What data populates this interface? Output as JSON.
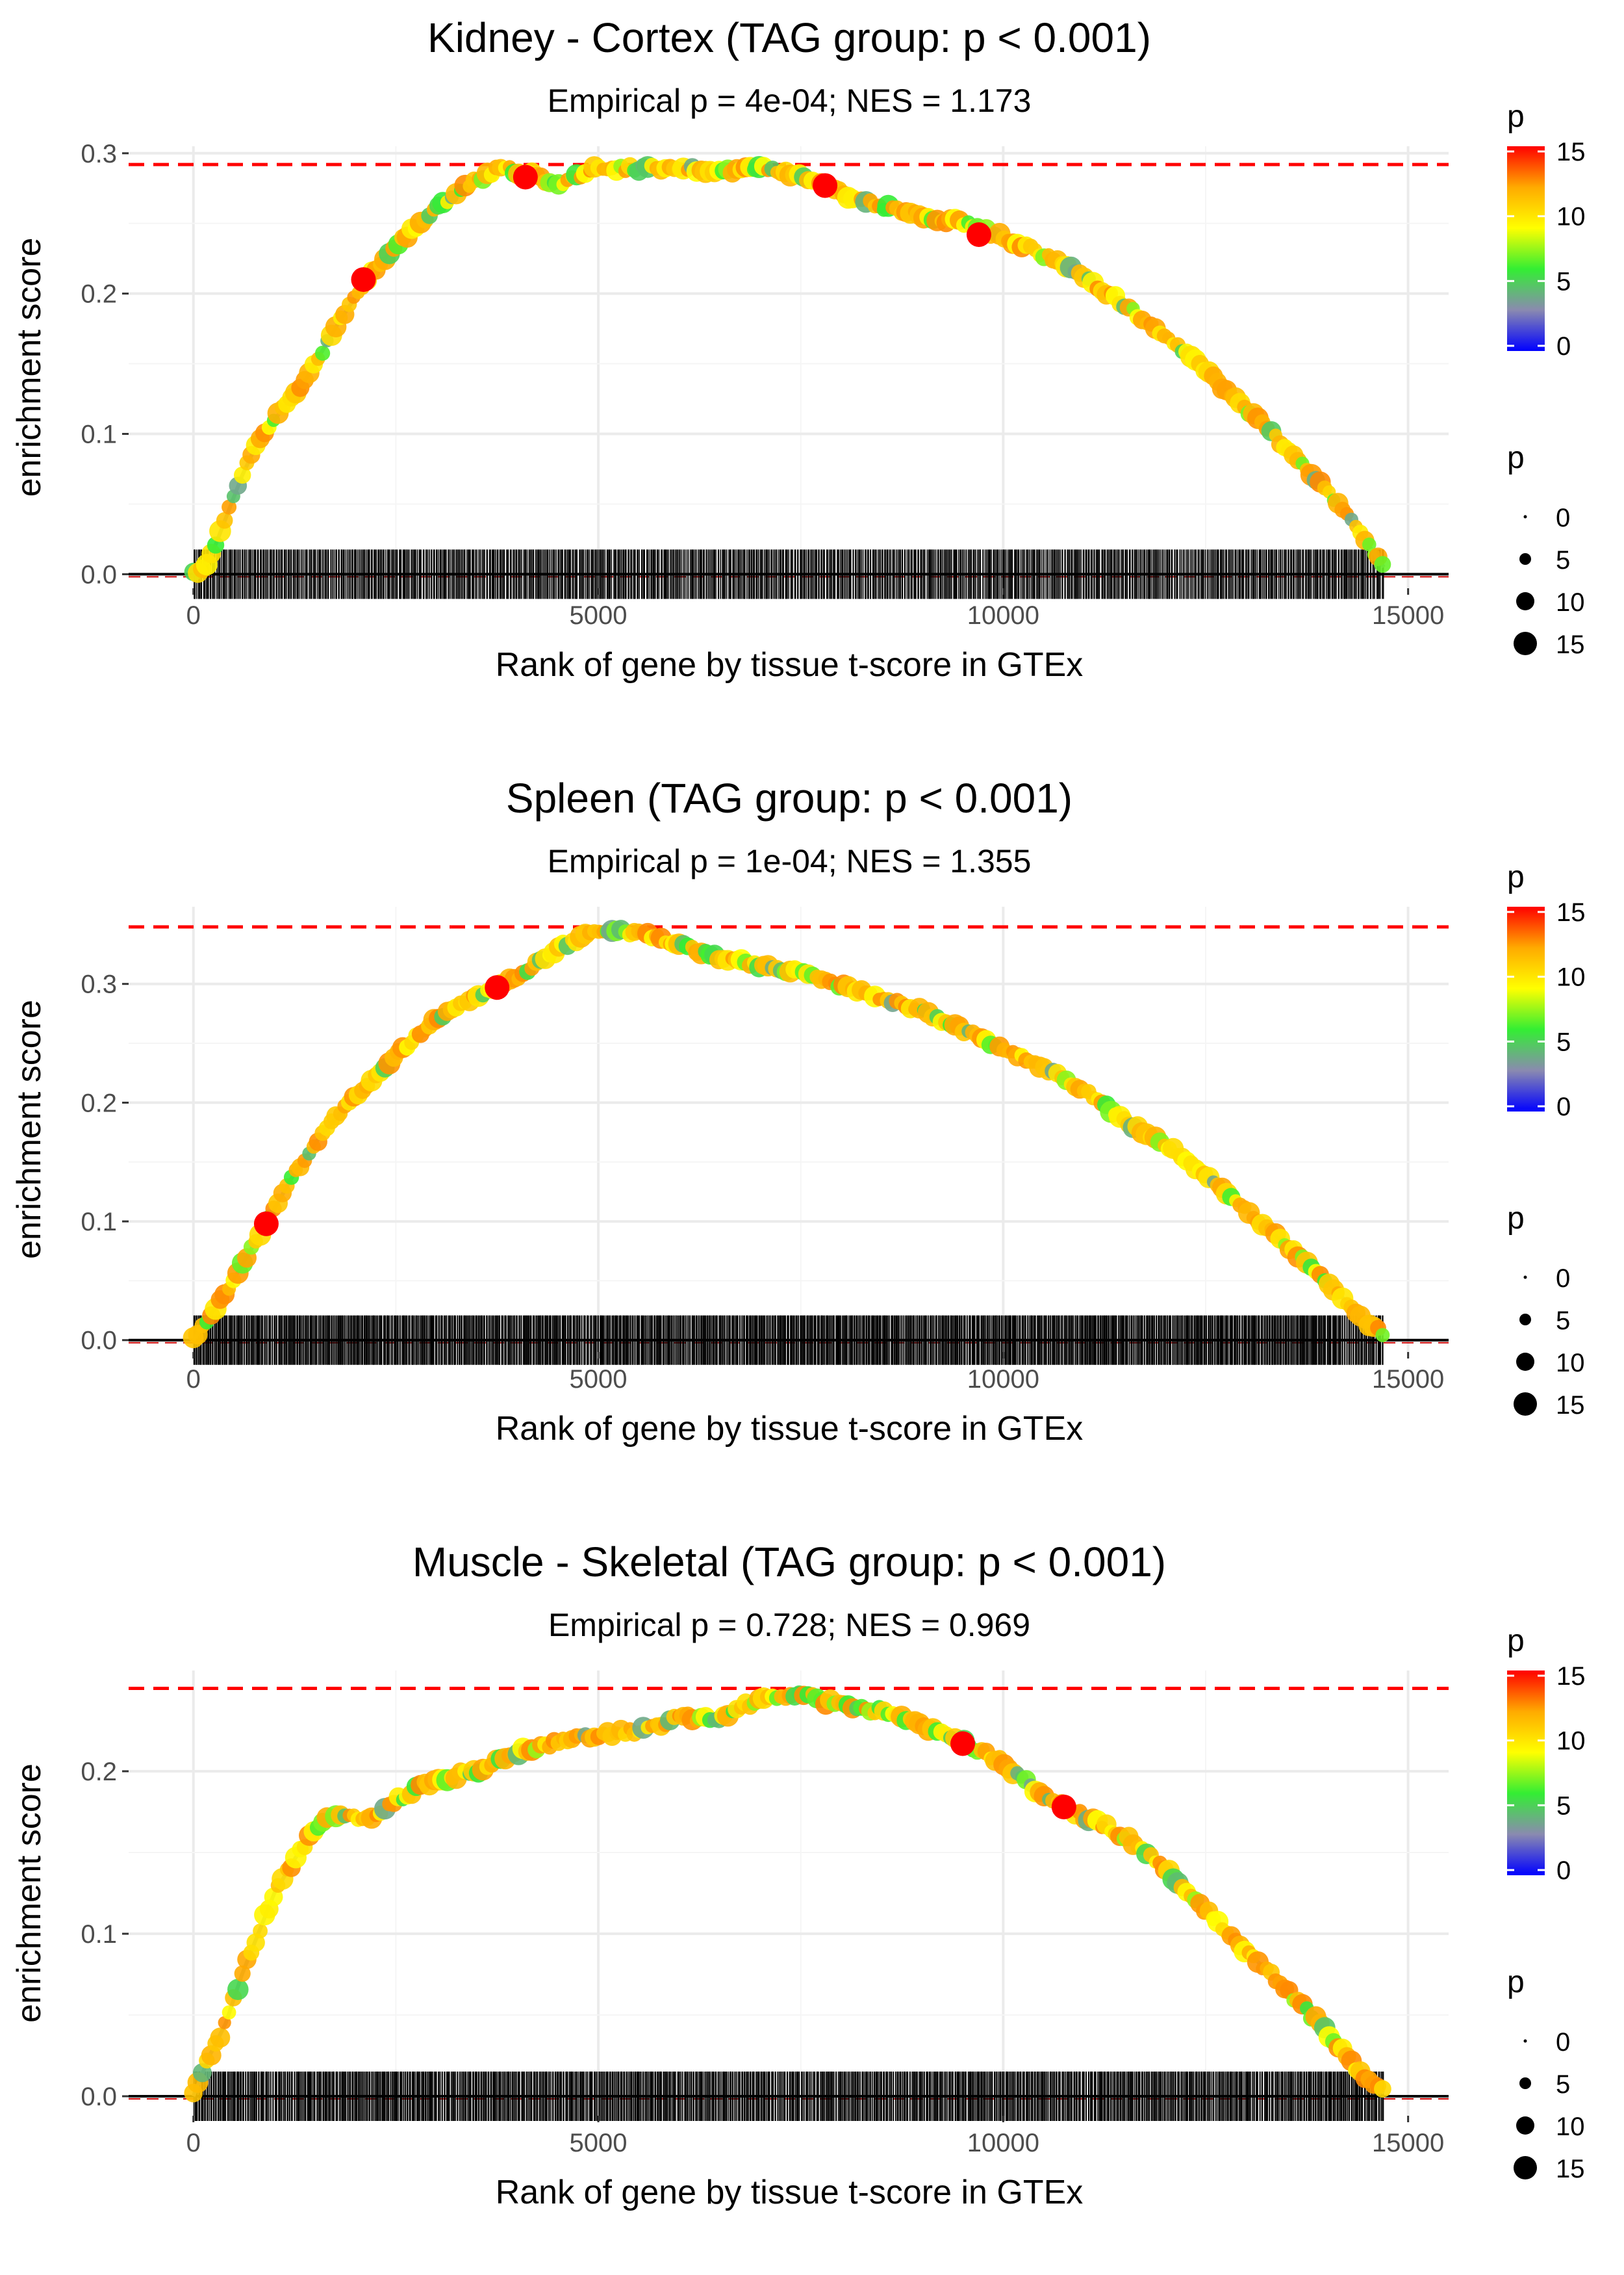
{
  "legend": {
    "colorbar_title": "p",
    "size_title": "p",
    "colorbar_ticks": [
      "0",
      "5",
      "10",
      "15"
    ],
    "size_labels": [
      "0",
      "5",
      "10",
      "15"
    ],
    "colors": [
      "#0000ff",
      "#8a8ab0",
      "#33ee33",
      "#ffff00",
      "#ffaa00",
      "#ff0000"
    ]
  },
  "chart_data": [
    {
      "type": "line",
      "title": "Kidney - Cortex (TAG group: p < 0.001)",
      "subtitle": "Empirical p = 4e-04; NES = 1.173",
      "xlabel": "Rank of gene by tissue t-score in GTEx",
      "ylabel": "enrichment score",
      "xlim": [
        -800,
        15500
      ],
      "ylim": [
        -0.01,
        0.305
      ],
      "xticks": [
        0,
        5000,
        10000,
        15000
      ],
      "xtick_labels": [
        "0",
        "5000",
        "10000",
        "15000"
      ],
      "yticks": [
        0.0,
        0.1,
        0.2,
        0.3
      ],
      "ytick_labels": [
        "0.0",
        "0.1",
        "0.2",
        "0.3"
      ],
      "max_es": 0.292,
      "es_curve": {
        "x": [
          0,
          200,
          400,
          600,
          800,
          1000,
          1400,
          1800,
          2200,
          2600,
          3000,
          3400,
          3800,
          4100,
          4500,
          5000,
          5500,
          6000,
          6500,
          7000,
          7500,
          8000,
          8500,
          9000,
          9500,
          10000,
          10500,
          11000,
          11500,
          12000,
          12500,
          13000,
          13500,
          14000,
          14400,
          14700
        ],
        "y": [
          0.0,
          0.01,
          0.04,
          0.07,
          0.095,
          0.11,
          0.14,
          0.18,
          0.215,
          0.24,
          0.26,
          0.278,
          0.29,
          0.286,
          0.278,
          0.29,
          0.289,
          0.29,
          0.287,
          0.29,
          0.283,
          0.272,
          0.262,
          0.256,
          0.25,
          0.24,
          0.228,
          0.212,
          0.192,
          0.17,
          0.145,
          0.118,
          0.09,
          0.06,
          0.03,
          0.005
        ]
      },
      "highlighted_points": [
        {
          "x": 2100,
          "y": 0.21
        },
        {
          "x": 4100,
          "y": 0.283
        },
        {
          "x": 7800,
          "y": 0.277
        },
        {
          "x": 9700,
          "y": 0.242
        }
      ],
      "rug": {
        "start": 0,
        "end": 14700,
        "count": 900
      }
    },
    {
      "type": "line",
      "title": "Spleen (TAG group: p < 0.001)",
      "subtitle": "Empirical p = 1e-04; NES = 1.355",
      "xlabel": "Rank of gene by tissue t-score in GTEx",
      "ylabel": "enrichment score",
      "xlim": [
        -800,
        15500
      ],
      "ylim": [
        -0.01,
        0.365
      ],
      "xticks": [
        0,
        5000,
        10000,
        15000
      ],
      "xtick_labels": [
        "0",
        "5000",
        "10000",
        "15000"
      ],
      "yticks": [
        0.0,
        0.1,
        0.2,
        0.3
      ],
      "ytick_labels": [
        "0.0",
        "0.1",
        "0.2",
        "0.3"
      ],
      "max_es": 0.348,
      "es_curve": {
        "x": [
          0,
          200,
          400,
          700,
          900,
          1200,
          1600,
          2000,
          2500,
          3000,
          3500,
          4000,
          4500,
          5000,
          5500,
          6000,
          6500,
          7000,
          7500,
          8000,
          8500,
          9000,
          9500,
          10000,
          10500,
          11000,
          11500,
          12000,
          12500,
          13000,
          13500,
          14000,
          14400,
          14700
        ],
        "y": [
          0.0,
          0.02,
          0.04,
          0.075,
          0.098,
          0.135,
          0.175,
          0.205,
          0.24,
          0.27,
          0.29,
          0.305,
          0.33,
          0.345,
          0.343,
          0.333,
          0.322,
          0.315,
          0.31,
          0.298,
          0.288,
          0.277,
          0.262,
          0.245,
          0.23,
          0.21,
          0.185,
          0.165,
          0.138,
          0.11,
          0.08,
          0.05,
          0.02,
          0.005
        ]
      },
      "highlighted_points": [
        {
          "x": 900,
          "y": 0.098
        },
        {
          "x": 3750,
          "y": 0.297
        }
      ],
      "rug": {
        "start": 0,
        "end": 14700,
        "count": 1100
      }
    },
    {
      "type": "line",
      "title": "Muscle - Skeletal (TAG group: p < 0.001)",
      "subtitle": "Empirical p = 0.728; NES = 0.969",
      "xlabel": "Rank of gene by tissue t-score in GTEx",
      "ylabel": "enrichment score",
      "xlim": [
        -800,
        15500
      ],
      "ylim": [
        -0.012,
        0.262
      ],
      "xticks": [
        0,
        5000,
        10000,
        15000
      ],
      "xtick_labels": [
        "0",
        "5000",
        "10000",
        "15000"
      ],
      "yticks": [
        0.0,
        0.1,
        0.2
      ],
      "ytick_labels": [
        "0.0",
        "0.1",
        "0.2"
      ],
      "max_es": 0.251,
      "es_curve": {
        "x": [
          0,
          200,
          400,
          600,
          800,
          1000,
          1300,
          1600,
          1900,
          2200,
          2600,
          3000,
          3500,
          4000,
          4500,
          5000,
          5500,
          6000,
          6500,
          7000,
          7500,
          8000,
          8500,
          9000,
          9500,
          10000,
          10500,
          11000,
          11500,
          12000,
          12500,
          13000,
          13500,
          14000,
          14400,
          14700
        ],
        "y": [
          0.0,
          0.025,
          0.045,
          0.075,
          0.1,
          0.125,
          0.15,
          0.17,
          0.172,
          0.172,
          0.185,
          0.195,
          0.2,
          0.212,
          0.218,
          0.222,
          0.225,
          0.233,
          0.232,
          0.245,
          0.248,
          0.24,
          0.237,
          0.228,
          0.218,
          0.205,
          0.185,
          0.172,
          0.16,
          0.14,
          0.115,
          0.09,
          0.065,
          0.04,
          0.015,
          0.002
        ]
      },
      "highlighted_points": [
        {
          "x": 9500,
          "y": 0.217
        },
        {
          "x": 10750,
          "y": 0.178
        }
      ],
      "rug": {
        "start": 0,
        "end": 14700,
        "count": 1000
      }
    }
  ]
}
